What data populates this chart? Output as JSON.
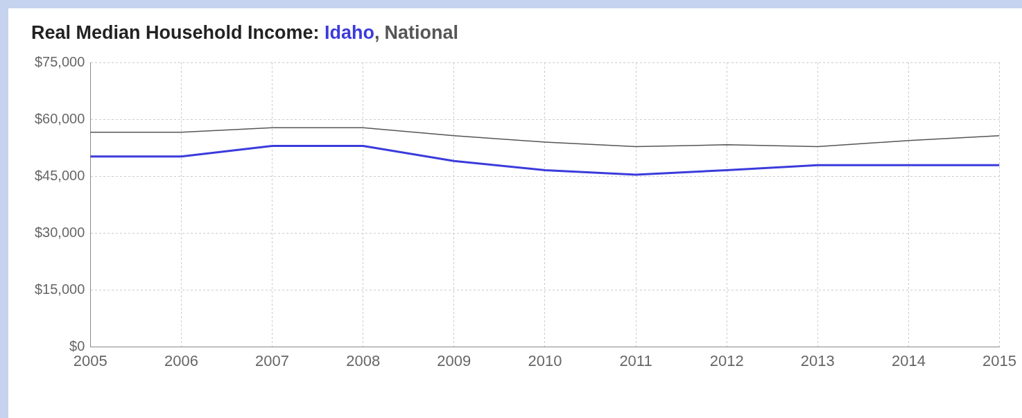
{
  "chart_data": {
    "type": "line",
    "title": "Real Median Household Income:",
    "x": [
      2005,
      2006,
      2007,
      2008,
      2009,
      2010,
      2011,
      2012,
      2013,
      2014,
      2015
    ],
    "series": [
      {
        "name": "Idaho",
        "color": "#3b3bdc",
        "values": [
          50200,
          50200,
          53000,
          53000,
          49000,
          46600,
          45400,
          46600,
          47900,
          47900,
          47900
        ]
      },
      {
        "name": "National",
        "color": "#555555",
        "values": [
          56600,
          56600,
          57800,
          57800,
          55700,
          54000,
          52800,
          53300,
          52800,
          54400,
          55700
        ]
      }
    ],
    "xlim": [
      2005,
      2015
    ],
    "xticks": [
      2005,
      2006,
      2007,
      2008,
      2009,
      2010,
      2011,
      2012,
      2013,
      2014,
      2015
    ],
    "ylim": [
      0,
      75000
    ],
    "yticks": [
      {
        "value": 0,
        "label": "$0"
      },
      {
        "value": 15000,
        "label": "$15,000"
      },
      {
        "value": 30000,
        "label": "$30,000"
      },
      {
        "value": 45000,
        "label": "$45,000"
      },
      {
        "value": 60000,
        "label": "$60,000"
      },
      {
        "value": 75000,
        "label": "$75,000"
      }
    ],
    "annotations": [
      ","
    ],
    "grid": true,
    "legend": false,
    "marker": "none",
    "line_style": "solid"
  }
}
